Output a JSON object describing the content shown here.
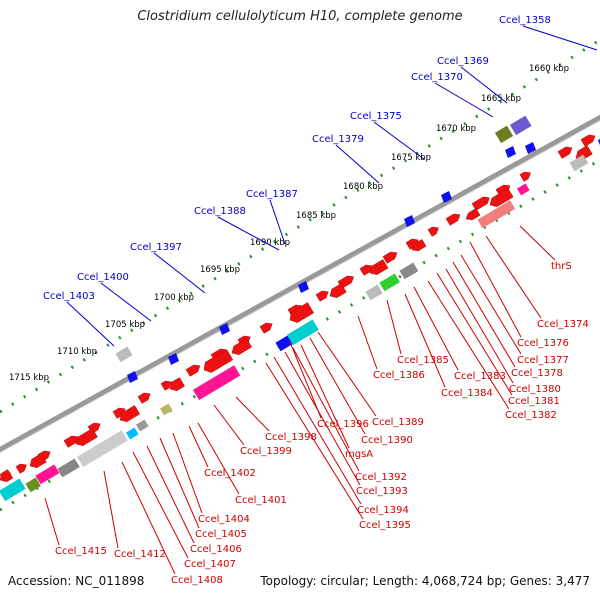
{
  "title": "Clostridium cellulolyticum H10, complete genome",
  "footer": {
    "accession": "Accession: NC_011898",
    "meta": "Topology: circular; Length: 4,068,724 bp; Genes: 3,477"
  },
  "colors": {
    "backbone": "#8a8a8a",
    "tick": "#2e8b2e",
    "top_label": "#0000cc",
    "bottom_label": "#cc0000",
    "plus_gene": "#ee1111",
    "minus_gene": "#ee1111",
    "misc_gene": "#1010ee"
  },
  "kbp_ticks": [
    "1660 kbp",
    "1665 kbp",
    "1670 kbp",
    "1675 kbp",
    "1680 kbp",
    "1685 kbp",
    "1690 kbp",
    "1695 kbp",
    "1700 kbp",
    "1705 kbp",
    "1710 kbp",
    "1715 kbp"
  ],
  "top_labels": [
    "Ccel_1358",
    "Ccel_1369",
    "Ccel_1370",
    "Ccel_1375",
    "Ccel_1379",
    "Ccel_1387",
    "Ccel_1388",
    "Ccel_1397",
    "Ccel_1400",
    "Ccel_1403"
  ],
  "bottom_labels": [
    "thrS",
    "Ccel_1374",
    "Ccel_1376",
    "Ccel_1377",
    "Ccel_1378",
    "Ccel_1380",
    "Ccel_1381",
    "Ccel_1382",
    "Ccel_1383",
    "Ccel_1384",
    "Ccel_1385",
    "Ccel_1386",
    "Ccel_1389",
    "Ccel_1390",
    "mgsA",
    "Ccel_1392",
    "Ccel_1393",
    "Ccel_1394",
    "Ccel_1395",
    "Ccel_1396",
    "Ccel_1398",
    "Ccel_1399",
    "Ccel_1401",
    "Ccel_1402",
    "Ccel_1404",
    "Ccel_1405",
    "Ccel_1406",
    "Ccel_1407",
    "Ccel_1408",
    "Ccel_1412",
    "Ccel_1415"
  ]
}
